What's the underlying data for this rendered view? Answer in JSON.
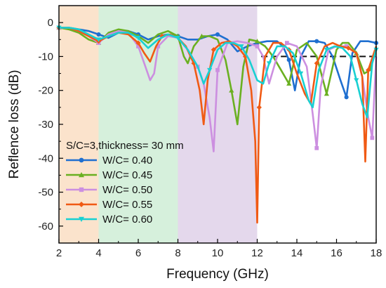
{
  "chart_data": {
    "type": "line",
    "xlabel": "Frequency (GHz)",
    "ylabel": "Reflence loss (dB)",
    "xlim": [
      2,
      18
    ],
    "ylim": [
      -65,
      5
    ],
    "x_ticks": [
      2,
      4,
      6,
      8,
      10,
      12,
      14,
      16,
      18
    ],
    "y_ticks": [
      0,
      -10,
      -20,
      -30,
      -40,
      -50,
      -60
    ],
    "grid": false,
    "bands": [
      {
        "from": 2,
        "to": 4,
        "color": "#fbe3cc"
      },
      {
        "from": 4,
        "to": 8,
        "color": "#d6f0dc"
      },
      {
        "from": 8,
        "to": 12,
        "color": "#e4d8ec"
      }
    ],
    "reference_line": {
      "y": -10,
      "x_from": 12.2,
      "x_to": 18,
      "color": "#111111",
      "style": "dashed"
    },
    "legend": {
      "title": "S/C=3,thickness= 30 mm",
      "placement": "bottom-left"
    },
    "series": [
      {
        "name": "W/C= 0.40",
        "color": "#1f6fd0",
        "marker": "circle",
        "x": [
          2.0,
          2.5,
          3.0,
          3.5,
          4.0,
          4.5,
          5.0,
          5.5,
          6.0,
          6.5,
          7.0,
          7.5,
          8.0,
          8.5,
          9.0,
          9.5,
          10.0,
          10.5,
          11.0,
          11.5,
          12.0,
          12.5,
          13.0,
          13.3,
          13.6,
          13.9,
          14.2,
          14.6,
          15.0,
          15.4,
          15.8,
          16.2,
          16.5,
          16.8,
          17.2,
          17.6,
          18.0
        ],
        "y": [
          -1.5,
          -1.5,
          -2,
          -2.5,
          -3.5,
          -4.5,
          -3,
          -2.5,
          -3.5,
          -5,
          -4,
          -3.5,
          -4,
          -5,
          -5,
          -4,
          -3.5,
          -5,
          -8.5,
          -7,
          -6,
          -5.5,
          -5.5,
          -7,
          -11,
          -20,
          -10,
          -5.5,
          -5.5,
          -6,
          -10,
          -17,
          -22,
          -9,
          -5.5,
          -5.5,
          -6
        ]
      },
      {
        "name": "W/C= 0.45",
        "color": "#6ab021",
        "marker": "triangle",
        "x": [
          2.0,
          2.5,
          3.0,
          3.5,
          4.0,
          4.5,
          5.0,
          5.5,
          6.0,
          6.5,
          7.0,
          7.5,
          8.0,
          8.3,
          8.5,
          8.8,
          9.2,
          9.6,
          10.0,
          10.4,
          10.7,
          11.0,
          11.3,
          11.6,
          12.0,
          12.4,
          12.8,
          13.2,
          13.6,
          14.0,
          14.5,
          15.0,
          15.5,
          16.0,
          16.3,
          16.6,
          17.0,
          17.4,
          17.7,
          18.0
        ],
        "y": [
          -1.5,
          -2,
          -3,
          -5,
          -6,
          -3,
          -2,
          -2.5,
          -4,
          -6,
          -3.5,
          -2.5,
          -4,
          -10,
          -12,
          -7,
          -4,
          -4,
          -5,
          -11,
          -20,
          -30,
          -13,
          -5,
          -5.5,
          -7,
          -10,
          -14,
          -18,
          -8,
          -6,
          -10,
          -21,
          -8,
          -6,
          -6,
          -9,
          -15,
          -14,
          -7
        ]
      },
      {
        "name": "W/C= 0.50",
        "color": "#cc8fe0",
        "marker": "square",
        "x": [
          2.0,
          2.5,
          3.0,
          3.5,
          4.0,
          4.5,
          5.0,
          5.5,
          6.0,
          6.3,
          6.6,
          6.8,
          7.0,
          7.5,
          8.0,
          8.5,
          9.0,
          9.3,
          9.6,
          9.8,
          10.0,
          10.5,
          11.0,
          11.5,
          12.0,
          12.3,
          12.6,
          13.0,
          13.5,
          14.0,
          14.5,
          14.8,
          15.0,
          15.2,
          15.6,
          16.0,
          16.5,
          17.0,
          17.3,
          17.6,
          17.8,
          18.0
        ],
        "y": [
          -1.5,
          -1.5,
          -2.5,
          -4,
          -6,
          -3.5,
          -2.5,
          -3,
          -7,
          -12,
          -17,
          -15,
          -7,
          -4,
          -4.5,
          -8,
          -13,
          -18,
          -28,
          -38,
          -14,
          -6,
          -5.5,
          -6,
          -7,
          -10,
          -18,
          -10,
          -6,
          -7,
          -13,
          -27,
          -37,
          -19,
          -8,
          -7,
          -7,
          -9,
          -16,
          -28,
          -34,
          -10
        ]
      },
      {
        "name": "W/C= 0.55",
        "color": "#f05a14",
        "marker": "diamond",
        "x": [
          2.0,
          2.5,
          3.0,
          3.5,
          4.0,
          4.5,
          5.0,
          5.5,
          6.0,
          6.3,
          6.6,
          6.9,
          7.2,
          7.6,
          8.0,
          8.4,
          8.8,
          9.1,
          9.3,
          9.5,
          9.8,
          10.2,
          10.6,
          11.0,
          11.4,
          11.7,
          11.9,
          12.0,
          12.1,
          12.4,
          12.8,
          13.2,
          13.6,
          14.0,
          14.4,
          14.7,
          15.0,
          15.4,
          15.8,
          16.2,
          16.6,
          17.0,
          17.3,
          17.45,
          17.6,
          18.0
        ],
        "y": [
          -1.5,
          -1.5,
          -2.5,
          -4,
          -5.5,
          -4,
          -3,
          -3.5,
          -6,
          -9,
          -11.5,
          -7,
          -4,
          -3.5,
          -4.5,
          -7,
          -12,
          -20,
          -30,
          -17,
          -8,
          -6,
          -5.5,
          -7,
          -10,
          -20,
          -35,
          -59,
          -25,
          -10,
          -6,
          -6,
          -8,
          -15,
          -21,
          -24,
          -12,
          -7,
          -6,
          -7,
          -7.5,
          -9,
          -16,
          -41,
          -14,
          -7
        ]
      },
      {
        "name": "W/C= 0.60",
        "color": "#18d0d2",
        "marker": "triangle-down",
        "x": [
          2.0,
          2.5,
          3.0,
          3.5,
          4.0,
          4.5,
          5.0,
          5.5,
          6.0,
          6.5,
          7.0,
          7.5,
          8.0,
          8.5,
          9.0,
          9.3,
          9.6,
          10.0,
          10.4,
          10.8,
          11.2,
          11.6,
          12.0,
          12.3,
          12.6,
          13.0,
          13.4,
          13.8,
          14.2,
          14.6,
          14.8,
          15.1,
          15.5,
          15.9,
          16.3,
          16.7,
          17.0,
          17.3,
          17.55,
          17.8,
          18.0
        ],
        "y": [
          -1.5,
          -1.5,
          -2,
          -3.5,
          -5,
          -4,
          -3,
          -3,
          -4.5,
          -7.5,
          -5,
          -3.5,
          -4.5,
          -8,
          -13,
          -18,
          -14,
          -8,
          -6,
          -6,
          -7,
          -11,
          -17,
          -18,
          -12,
          -7,
          -7,
          -9,
          -15,
          -23,
          -25,
          -14,
          -8,
          -7,
          -7.5,
          -10,
          -17,
          -24,
          -28,
          -12,
          -8
        ]
      }
    ]
  }
}
